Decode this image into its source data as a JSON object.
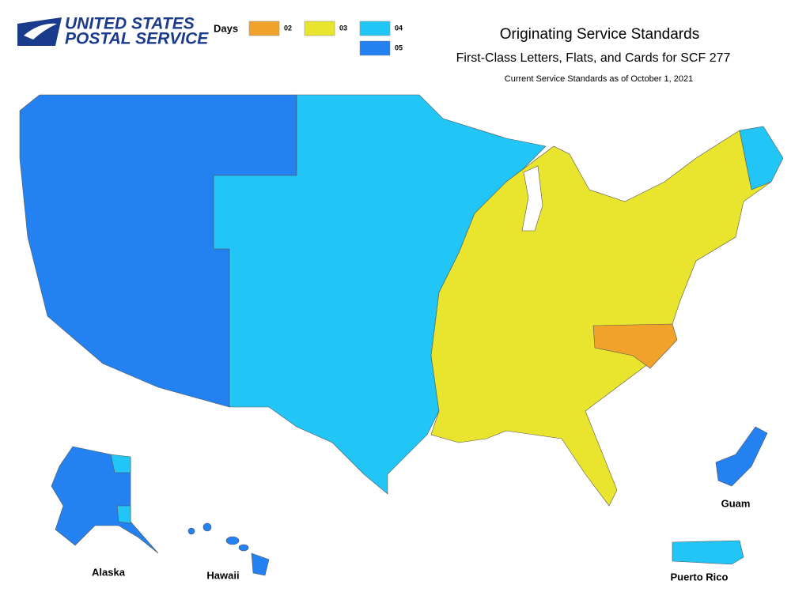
{
  "header": {
    "logo_line1": "UNITED STATES",
    "logo_line2": "POSTAL SERVICE",
    "title": "Originating Service Standards",
    "subtitle": "First-Class Letters, Flats, and Cards for SCF 277",
    "note": "Current Service Standards as of October 1, 2021"
  },
  "legend": {
    "title": "Days",
    "items": [
      {
        "label": "02",
        "color": "#f0a22a"
      },
      {
        "label": "03",
        "color": "#e9e52e"
      },
      {
        "label": "04",
        "color": "#22c6f6"
      },
      {
        "label": "05",
        "color": "#2381f2"
      }
    ]
  },
  "insets": {
    "alaska": "Alaska",
    "hawaii": "Hawaii",
    "guam": "Guam",
    "puerto_rico": "Puerto Rico"
  }
}
